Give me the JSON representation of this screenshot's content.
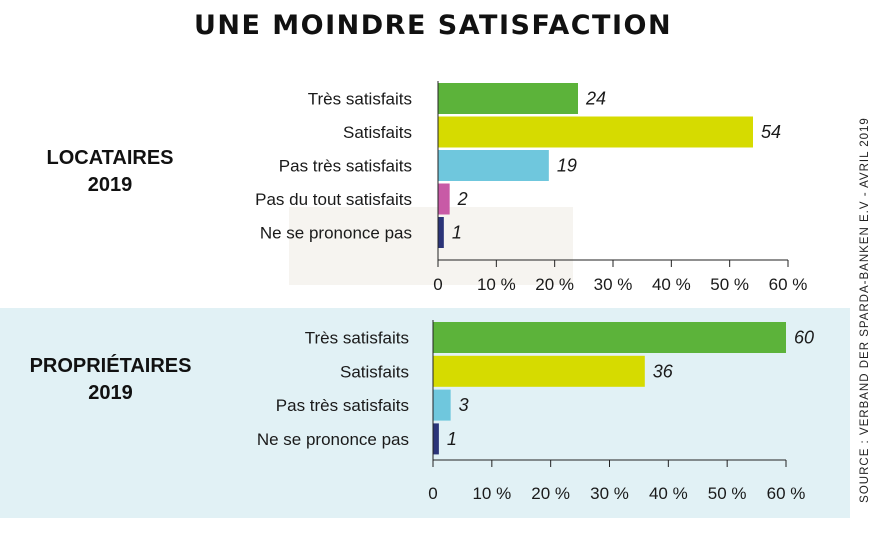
{
  "title": "UNE MOINDRE SATISFACTION",
  "source": "SOURCE : VERBAND DER SPARDA-BANKEN E.V - AVRIL 2019",
  "chart_data": [
    {
      "type": "bar",
      "orientation": "horizontal",
      "group_label": [
        "LOCATAIRES",
        "2019"
      ],
      "categories": [
        "Très satisfaits",
        "Satisfaits",
        "Pas très satisfaits",
        "Pas du tout satisfaits",
        "Ne se prononce pas"
      ],
      "values": [
        24,
        54,
        19,
        2,
        1
      ],
      "colors": [
        "#5cb33a",
        "#d6db00",
        "#6fc7dd",
        "#c85aa6",
        "#2b3478"
      ],
      "xlim": [
        0,
        60
      ],
      "ticks": [
        "0",
        "10 %",
        "20 %",
        "30 %",
        "40 %",
        "50 %",
        "60 %"
      ],
      "grid": false
    },
    {
      "type": "bar",
      "orientation": "horizontal",
      "group_label": [
        "PROPRIÉTAIRES",
        "2019"
      ],
      "categories": [
        "Très satisfaits",
        "Satisfaits",
        "Pas très satisfaits",
        "Ne se prononce pas"
      ],
      "values": [
        60,
        36,
        3,
        1
      ],
      "colors": [
        "#5cb33a",
        "#d6db00",
        "#6fc7dd",
        "#2b3478"
      ],
      "xlim": [
        0,
        60
      ],
      "ticks": [
        "0",
        "10 %",
        "20 %",
        "30 %",
        "40 %",
        "50 %",
        "60 %"
      ],
      "grid": false
    }
  ]
}
